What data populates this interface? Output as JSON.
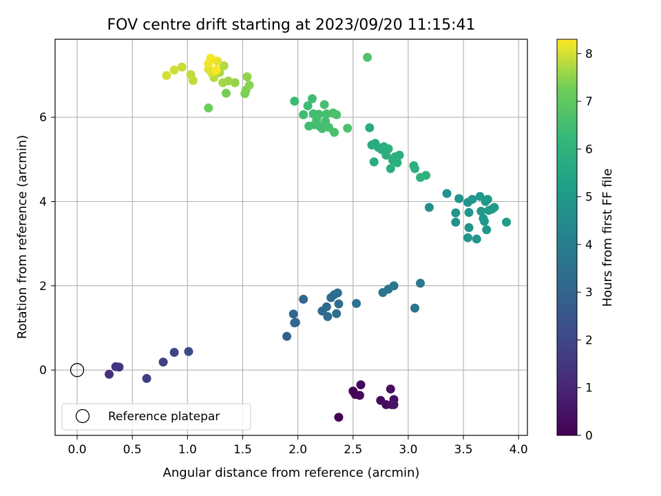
{
  "chart_data": {
    "type": "scatter",
    "title": "FOV centre drift starting at 2023/09/20 11:15:41",
    "xlabel": "Angular distance from reference (arcmin)",
    "ylabel": "Rotation from reference (arcmin)",
    "xlim": [
      -0.2,
      4.08
    ],
    "ylim": [
      -1.55,
      7.85
    ],
    "xticks": [
      "0.0",
      "0.5",
      "1.0",
      "1.5",
      "2.0",
      "2.5",
      "3.0",
      "3.5",
      "4.0"
    ],
    "yticks": [
      "0",
      "2",
      "4",
      "6"
    ],
    "grid": true,
    "legend": {
      "position": "lower-left",
      "entries": [
        "Reference platepar"
      ]
    },
    "reference_point": {
      "label": "Reference platepar",
      "x": 0.0,
      "y": 0.0
    },
    "colorbar": {
      "label": "Hours from first FF file",
      "range": [
        0,
        8.3
      ],
      "ticks": [
        "0",
        "1",
        "2",
        "3",
        "4",
        "5",
        "6",
        "7",
        "8"
      ],
      "colormap": "viridis"
    },
    "points": [
      {
        "x": 2.5,
        "y": -0.5,
        "h": 0.05
      },
      {
        "x": 2.52,
        "y": -0.58,
        "h": 0.1
      },
      {
        "x": 2.57,
        "y": -0.35,
        "h": 0.15
      },
      {
        "x": 2.56,
        "y": -0.6,
        "h": 0.2
      },
      {
        "x": 2.75,
        "y": -0.72,
        "h": 0.25
      },
      {
        "x": 2.8,
        "y": -0.82,
        "h": 0.3
      },
      {
        "x": 2.84,
        "y": -0.45,
        "h": 0.35
      },
      {
        "x": 2.87,
        "y": -0.7,
        "h": 0.4
      },
      {
        "x": 2.85,
        "y": -0.82,
        "h": 0.45
      },
      {
        "x": 2.87,
        "y": -0.82,
        "h": 0.5
      },
      {
        "x": 2.37,
        "y": -1.12,
        "h": 0.0
      },
      {
        "x": 0.29,
        "y": -0.1,
        "h": 1.3
      },
      {
        "x": 0.35,
        "y": 0.08,
        "h": 1.4
      },
      {
        "x": 0.38,
        "y": 0.07,
        "h": 1.5
      },
      {
        "x": 0.63,
        "y": -0.2,
        "h": 1.7
      },
      {
        "x": 0.78,
        "y": 0.19,
        "h": 1.85
      },
      {
        "x": 0.88,
        "y": 0.42,
        "h": 2.0
      },
      {
        "x": 1.01,
        "y": 0.44,
        "h": 2.15
      },
      {
        "x": 1.9,
        "y": 0.8,
        "h": 2.9
      },
      {
        "x": 1.96,
        "y": 1.33,
        "h": 3.0
      },
      {
        "x": 1.97,
        "y": 1.12,
        "h": 3.0
      },
      {
        "x": 1.98,
        "y": 1.13,
        "h": 3.05
      },
      {
        "x": 2.05,
        "y": 1.68,
        "h": 3.1
      },
      {
        "x": 2.22,
        "y": 1.4,
        "h": 3.15
      },
      {
        "x": 2.26,
        "y": 1.5,
        "h": 3.2
      },
      {
        "x": 2.27,
        "y": 1.27,
        "h": 3.2
      },
      {
        "x": 2.3,
        "y": 1.72,
        "h": 3.25
      },
      {
        "x": 2.33,
        "y": 1.79,
        "h": 3.3
      },
      {
        "x": 2.36,
        "y": 1.83,
        "h": 3.3
      },
      {
        "x": 2.35,
        "y": 1.34,
        "h": 3.35
      },
      {
        "x": 2.37,
        "y": 1.57,
        "h": 3.4
      },
      {
        "x": 2.53,
        "y": 1.58,
        "h": 3.5
      },
      {
        "x": 2.77,
        "y": 1.84,
        "h": 3.55
      },
      {
        "x": 2.82,
        "y": 1.92,
        "h": 3.6
      },
      {
        "x": 2.87,
        "y": 2.0,
        "h": 3.65
      },
      {
        "x": 3.06,
        "y": 1.47,
        "h": 3.7
      },
      {
        "x": 3.11,
        "y": 2.06,
        "h": 3.75
      },
      {
        "x": 3.19,
        "y": 3.86,
        "h": 4.6
      },
      {
        "x": 3.35,
        "y": 4.19,
        "h": 4.7
      },
      {
        "x": 3.43,
        "y": 3.73,
        "h": 4.75
      },
      {
        "x": 3.43,
        "y": 3.51,
        "h": 4.75
      },
      {
        "x": 3.46,
        "y": 4.07,
        "h": 4.8
      },
      {
        "x": 3.54,
        "y": 3.98,
        "h": 4.85
      },
      {
        "x": 3.55,
        "y": 3.74,
        "h": 4.85
      },
      {
        "x": 3.55,
        "y": 3.38,
        "h": 4.85
      },
      {
        "x": 3.54,
        "y": 3.14,
        "h": 4.9
      },
      {
        "x": 3.58,
        "y": 4.05,
        "h": 4.9
      },
      {
        "x": 3.62,
        "y": 3.11,
        "h": 4.9
      },
      {
        "x": 3.65,
        "y": 4.12,
        "h": 4.95
      },
      {
        "x": 3.66,
        "y": 3.77,
        "h": 4.95
      },
      {
        "x": 3.68,
        "y": 3.6,
        "h": 4.95
      },
      {
        "x": 3.69,
        "y": 3.53,
        "h": 5.0
      },
      {
        "x": 3.7,
        "y": 4.0,
        "h": 5.0
      },
      {
        "x": 3.72,
        "y": 4.05,
        "h": 5.0
      },
      {
        "x": 3.71,
        "y": 3.33,
        "h": 5.0
      },
      {
        "x": 3.73,
        "y": 3.79,
        "h": 5.05
      },
      {
        "x": 3.76,
        "y": 3.82,
        "h": 5.05
      },
      {
        "x": 3.78,
        "y": 3.86,
        "h": 5.05
      },
      {
        "x": 3.89,
        "y": 3.51,
        "h": 5.1
      },
      {
        "x": 2.65,
        "y": 5.75,
        "h": 5.6
      },
      {
        "x": 2.67,
        "y": 5.34,
        "h": 5.65
      },
      {
        "x": 2.69,
        "y": 4.94,
        "h": 5.7
      },
      {
        "x": 2.7,
        "y": 5.38,
        "h": 5.7
      },
      {
        "x": 2.73,
        "y": 5.28,
        "h": 5.75
      },
      {
        "x": 2.76,
        "y": 5.23,
        "h": 5.8
      },
      {
        "x": 2.78,
        "y": 5.3,
        "h": 5.8
      },
      {
        "x": 2.8,
        "y": 5.1,
        "h": 5.8
      },
      {
        "x": 2.82,
        "y": 5.25,
        "h": 5.85
      },
      {
        "x": 2.84,
        "y": 4.78,
        "h": 5.85
      },
      {
        "x": 2.86,
        "y": 4.98,
        "h": 5.85
      },
      {
        "x": 2.88,
        "y": 5.06,
        "h": 5.9
      },
      {
        "x": 2.9,
        "y": 4.92,
        "h": 5.9
      },
      {
        "x": 2.92,
        "y": 5.1,
        "h": 5.9
      },
      {
        "x": 3.05,
        "y": 4.85,
        "h": 5.95
      },
      {
        "x": 3.06,
        "y": 4.78,
        "h": 5.95
      },
      {
        "x": 3.11,
        "y": 4.57,
        "h": 6.0
      },
      {
        "x": 3.16,
        "y": 4.62,
        "h": 6.0
      },
      {
        "x": 1.97,
        "y": 6.38,
        "h": 6.35
      },
      {
        "x": 2.05,
        "y": 6.06,
        "h": 6.4
      },
      {
        "x": 2.09,
        "y": 6.27,
        "h": 6.4
      },
      {
        "x": 2.1,
        "y": 5.79,
        "h": 6.45
      },
      {
        "x": 2.13,
        "y": 6.44,
        "h": 6.45
      },
      {
        "x": 2.14,
        "y": 6.08,
        "h": 6.45
      },
      {
        "x": 2.15,
        "y": 5.82,
        "h": 6.5
      },
      {
        "x": 2.17,
        "y": 5.95,
        "h": 6.5
      },
      {
        "x": 2.19,
        "y": 6.07,
        "h": 6.5
      },
      {
        "x": 2.2,
        "y": 5.78,
        "h": 6.5
      },
      {
        "x": 2.22,
        "y": 5.73,
        "h": 6.55
      },
      {
        "x": 2.24,
        "y": 6.3,
        "h": 6.55
      },
      {
        "x": 2.25,
        "y": 5.9,
        "h": 6.55
      },
      {
        "x": 2.26,
        "y": 6.08,
        "h": 6.55
      },
      {
        "x": 2.28,
        "y": 5.76,
        "h": 6.6
      },
      {
        "x": 2.32,
        "y": 6.1,
        "h": 6.6
      },
      {
        "x": 2.33,
        "y": 5.64,
        "h": 6.6
      },
      {
        "x": 2.35,
        "y": 6.06,
        "h": 6.65
      },
      {
        "x": 2.45,
        "y": 5.74,
        "h": 6.65
      },
      {
        "x": 2.63,
        "y": 7.42,
        "h": 6.7
      },
      {
        "x": 1.19,
        "y": 6.22,
        "h": 7.2
      },
      {
        "x": 1.35,
        "y": 6.57,
        "h": 7.3
      },
      {
        "x": 1.52,
        "y": 6.56,
        "h": 7.35
      },
      {
        "x": 1.53,
        "y": 6.64,
        "h": 7.4
      },
      {
        "x": 1.56,
        "y": 6.76,
        "h": 7.45
      },
      {
        "x": 1.54,
        "y": 6.96,
        "h": 7.5
      },
      {
        "x": 1.43,
        "y": 6.82,
        "h": 7.55
      },
      {
        "x": 1.37,
        "y": 6.86,
        "h": 7.6
      },
      {
        "x": 1.32,
        "y": 6.82,
        "h": 7.65
      },
      {
        "x": 1.29,
        "y": 7.06,
        "h": 7.7
      },
      {
        "x": 1.33,
        "y": 7.22,
        "h": 7.75
      },
      {
        "x": 1.24,
        "y": 6.94,
        "h": 7.8
      },
      {
        "x": 1.05,
        "y": 6.87,
        "h": 7.85
      },
      {
        "x": 1.03,
        "y": 7.01,
        "h": 7.85
      },
      {
        "x": 0.95,
        "y": 7.19,
        "h": 7.9
      },
      {
        "x": 0.88,
        "y": 7.12,
        "h": 7.95
      },
      {
        "x": 0.81,
        "y": 6.99,
        "h": 8.0
      },
      {
        "x": 1.22,
        "y": 7.05,
        "h": 8.05
      },
      {
        "x": 1.19,
        "y": 7.14,
        "h": 8.1
      },
      {
        "x": 1.27,
        "y": 7.33,
        "h": 8.15
      },
      {
        "x": 1.19,
        "y": 7.27,
        "h": 8.2
      },
      {
        "x": 1.21,
        "y": 7.4,
        "h": 8.25
      },
      {
        "x": 1.26,
        "y": 7.12,
        "h": 8.3
      }
    ]
  }
}
